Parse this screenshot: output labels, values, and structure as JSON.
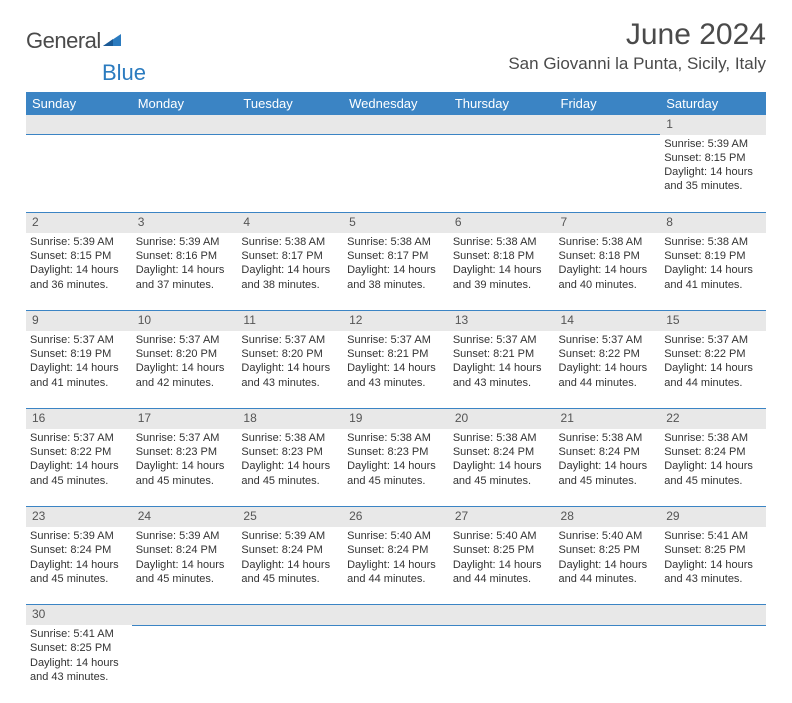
{
  "logo": {
    "part1": "General",
    "part2": "Blue"
  },
  "title": "June 2024",
  "location": "San Giovanni la Punta, Sicily, Italy",
  "colors": {
    "header_bg": "#3b84c4",
    "header_text": "#ffffff",
    "daynum_bg": "#e8e8e8",
    "cell_border": "#3b84c4",
    "text": "#333333",
    "logo_gray": "#4a4a4a",
    "logo_blue": "#2b7bbf"
  },
  "weekdays": [
    "Sunday",
    "Monday",
    "Tuesday",
    "Wednesday",
    "Thursday",
    "Friday",
    "Saturday"
  ],
  "weeks": [
    {
      "nums": [
        "",
        "",
        "",
        "",
        "",
        "",
        "1"
      ],
      "cells": [
        null,
        null,
        null,
        null,
        null,
        null,
        {
          "sunrise": "Sunrise: 5:39 AM",
          "sunset": "Sunset: 8:15 PM",
          "day1": "Daylight: 14 hours",
          "day2": "and 35 minutes."
        }
      ]
    },
    {
      "nums": [
        "2",
        "3",
        "4",
        "5",
        "6",
        "7",
        "8"
      ],
      "cells": [
        {
          "sunrise": "Sunrise: 5:39 AM",
          "sunset": "Sunset: 8:15 PM",
          "day1": "Daylight: 14 hours",
          "day2": "and 36 minutes."
        },
        {
          "sunrise": "Sunrise: 5:39 AM",
          "sunset": "Sunset: 8:16 PM",
          "day1": "Daylight: 14 hours",
          "day2": "and 37 minutes."
        },
        {
          "sunrise": "Sunrise: 5:38 AM",
          "sunset": "Sunset: 8:17 PM",
          "day1": "Daylight: 14 hours",
          "day2": "and 38 minutes."
        },
        {
          "sunrise": "Sunrise: 5:38 AM",
          "sunset": "Sunset: 8:17 PM",
          "day1": "Daylight: 14 hours",
          "day2": "and 38 minutes."
        },
        {
          "sunrise": "Sunrise: 5:38 AM",
          "sunset": "Sunset: 8:18 PM",
          "day1": "Daylight: 14 hours",
          "day2": "and 39 minutes."
        },
        {
          "sunrise": "Sunrise: 5:38 AM",
          "sunset": "Sunset: 8:18 PM",
          "day1": "Daylight: 14 hours",
          "day2": "and 40 minutes."
        },
        {
          "sunrise": "Sunrise: 5:38 AM",
          "sunset": "Sunset: 8:19 PM",
          "day1": "Daylight: 14 hours",
          "day2": "and 41 minutes."
        }
      ]
    },
    {
      "nums": [
        "9",
        "10",
        "11",
        "12",
        "13",
        "14",
        "15"
      ],
      "cells": [
        {
          "sunrise": "Sunrise: 5:37 AM",
          "sunset": "Sunset: 8:19 PM",
          "day1": "Daylight: 14 hours",
          "day2": "and 41 minutes."
        },
        {
          "sunrise": "Sunrise: 5:37 AM",
          "sunset": "Sunset: 8:20 PM",
          "day1": "Daylight: 14 hours",
          "day2": "and 42 minutes."
        },
        {
          "sunrise": "Sunrise: 5:37 AM",
          "sunset": "Sunset: 8:20 PM",
          "day1": "Daylight: 14 hours",
          "day2": "and 43 minutes."
        },
        {
          "sunrise": "Sunrise: 5:37 AM",
          "sunset": "Sunset: 8:21 PM",
          "day1": "Daylight: 14 hours",
          "day2": "and 43 minutes."
        },
        {
          "sunrise": "Sunrise: 5:37 AM",
          "sunset": "Sunset: 8:21 PM",
          "day1": "Daylight: 14 hours",
          "day2": "and 43 minutes."
        },
        {
          "sunrise": "Sunrise: 5:37 AM",
          "sunset": "Sunset: 8:22 PM",
          "day1": "Daylight: 14 hours",
          "day2": "and 44 minutes."
        },
        {
          "sunrise": "Sunrise: 5:37 AM",
          "sunset": "Sunset: 8:22 PM",
          "day1": "Daylight: 14 hours",
          "day2": "and 44 minutes."
        }
      ]
    },
    {
      "nums": [
        "16",
        "17",
        "18",
        "19",
        "20",
        "21",
        "22"
      ],
      "cells": [
        {
          "sunrise": "Sunrise: 5:37 AM",
          "sunset": "Sunset: 8:22 PM",
          "day1": "Daylight: 14 hours",
          "day2": "and 45 minutes."
        },
        {
          "sunrise": "Sunrise: 5:37 AM",
          "sunset": "Sunset: 8:23 PM",
          "day1": "Daylight: 14 hours",
          "day2": "and 45 minutes."
        },
        {
          "sunrise": "Sunrise: 5:38 AM",
          "sunset": "Sunset: 8:23 PM",
          "day1": "Daylight: 14 hours",
          "day2": "and 45 minutes."
        },
        {
          "sunrise": "Sunrise: 5:38 AM",
          "sunset": "Sunset: 8:23 PM",
          "day1": "Daylight: 14 hours",
          "day2": "and 45 minutes."
        },
        {
          "sunrise": "Sunrise: 5:38 AM",
          "sunset": "Sunset: 8:24 PM",
          "day1": "Daylight: 14 hours",
          "day2": "and 45 minutes."
        },
        {
          "sunrise": "Sunrise: 5:38 AM",
          "sunset": "Sunset: 8:24 PM",
          "day1": "Daylight: 14 hours",
          "day2": "and 45 minutes."
        },
        {
          "sunrise": "Sunrise: 5:38 AM",
          "sunset": "Sunset: 8:24 PM",
          "day1": "Daylight: 14 hours",
          "day2": "and 45 minutes."
        }
      ]
    },
    {
      "nums": [
        "23",
        "24",
        "25",
        "26",
        "27",
        "28",
        "29"
      ],
      "cells": [
        {
          "sunrise": "Sunrise: 5:39 AM",
          "sunset": "Sunset: 8:24 PM",
          "day1": "Daylight: 14 hours",
          "day2": "and 45 minutes."
        },
        {
          "sunrise": "Sunrise: 5:39 AM",
          "sunset": "Sunset: 8:24 PM",
          "day1": "Daylight: 14 hours",
          "day2": "and 45 minutes."
        },
        {
          "sunrise": "Sunrise: 5:39 AM",
          "sunset": "Sunset: 8:24 PM",
          "day1": "Daylight: 14 hours",
          "day2": "and 45 minutes."
        },
        {
          "sunrise": "Sunrise: 5:40 AM",
          "sunset": "Sunset: 8:24 PM",
          "day1": "Daylight: 14 hours",
          "day2": "and 44 minutes."
        },
        {
          "sunrise": "Sunrise: 5:40 AM",
          "sunset": "Sunset: 8:25 PM",
          "day1": "Daylight: 14 hours",
          "day2": "and 44 minutes."
        },
        {
          "sunrise": "Sunrise: 5:40 AM",
          "sunset": "Sunset: 8:25 PM",
          "day1": "Daylight: 14 hours",
          "day2": "and 44 minutes."
        },
        {
          "sunrise": "Sunrise: 5:41 AM",
          "sunset": "Sunset: 8:25 PM",
          "day1": "Daylight: 14 hours",
          "day2": "and 43 minutes."
        }
      ]
    },
    {
      "nums": [
        "30",
        "",
        "",
        "",
        "",
        "",
        ""
      ],
      "cells": [
        {
          "sunrise": "Sunrise: 5:41 AM",
          "sunset": "Sunset: 8:25 PM",
          "day1": "Daylight: 14 hours",
          "day2": "and 43 minutes."
        },
        null,
        null,
        null,
        null,
        null,
        null
      ],
      "last": true
    }
  ]
}
